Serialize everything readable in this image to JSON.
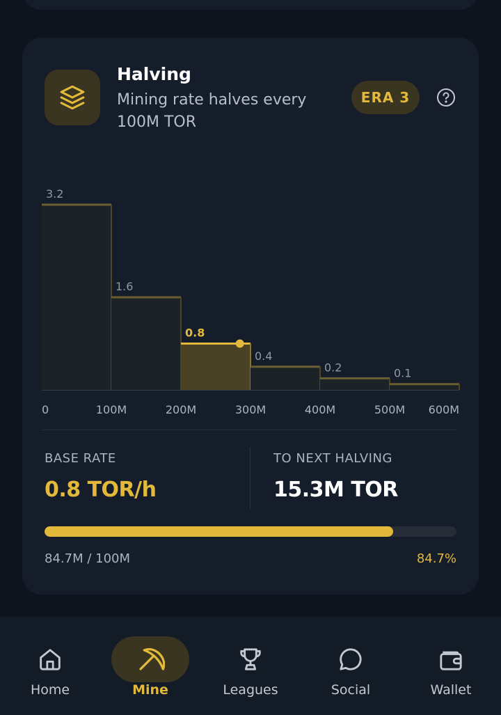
{
  "halving": {
    "title": "Halving",
    "subtitle": "Mining rate halves every 100M TOR",
    "era_badge": "ERA 3",
    "icon": "layers-icon",
    "help_icon": "help-circle-icon"
  },
  "chart_data": {
    "type": "bar",
    "categories": [
      "0-100M",
      "100M-200M",
      "200M-300M",
      "300M-400M",
      "400M-500M",
      "500M-600M"
    ],
    "values": [
      3.2,
      1.6,
      0.8,
      0.4,
      0.2,
      0.1
    ],
    "value_labels": [
      "3.2",
      "1.6",
      "0.8",
      "0.4",
      "0.2",
      ""
    ],
    "extra_label": "0.1",
    "x_ticks": [
      "0",
      "100M",
      "200M",
      "300M",
      "400M",
      "500M",
      "600M"
    ],
    "highlight_index": 2,
    "current_supply_m": 284.7,
    "xlim": [
      0,
      600
    ],
    "ylim": [
      0,
      3.2
    ],
    "title": "",
    "xlabel": "",
    "ylabel": ""
  },
  "stats": {
    "base_rate_label": "BASE RATE",
    "base_rate_value": "0.8 TOR/h",
    "next_label": "TO NEXT HALVING",
    "next_value": "15.3M TOR"
  },
  "progress": {
    "fraction": 0.847,
    "left_text": "84.7M / 100M",
    "right_text": "84.7%"
  },
  "nav": {
    "items": [
      {
        "label": "Home",
        "icon": "home-icon"
      },
      {
        "label": "Mine",
        "icon": "pickaxe-icon"
      },
      {
        "label": "Leagues",
        "icon": "trophy-icon"
      },
      {
        "label": "Social",
        "icon": "chat-bubble-icon"
      },
      {
        "label": "Wallet",
        "icon": "wallet-icon"
      }
    ],
    "active": "Mine"
  },
  "colors": {
    "accent": "#e2b93b",
    "card": "#141d29",
    "background": "#0d141d"
  }
}
